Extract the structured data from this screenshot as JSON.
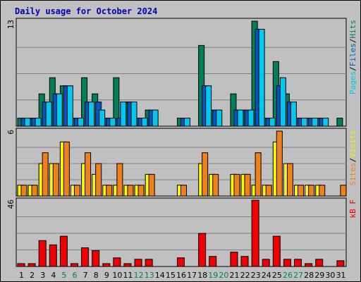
{
  "chart_data": {
    "type": "bar",
    "title": "Daily usage for October 2024",
    "days": [
      "1",
      "2",
      "3",
      "4",
      "5",
      "6",
      "7",
      "8",
      "9",
      "10",
      "11",
      "12",
      "13",
      "14",
      "15",
      "16",
      "17",
      "18",
      "19",
      "20",
      "21",
      "22",
      "23",
      "24",
      "25",
      "26",
      "27",
      "28",
      "29",
      "30",
      "31"
    ],
    "weekend_days": [
      "5",
      "6",
      "12",
      "13",
      "19",
      "20",
      "26",
      "27"
    ],
    "panels": [
      {
        "id": "top",
        "ymax_label": "13",
        "ymax": 13,
        "legend": [
          {
            "text": "Pages",
            "color": "#00c8e8"
          },
          {
            "text": "/",
            "color": "#000000"
          },
          {
            "text": "Files",
            "color": "#0060c0"
          },
          {
            "text": "/",
            "color": "#000000"
          },
          {
            "text": "Hits",
            "color": "#008060"
          }
        ],
        "series": [
          {
            "name": "Hits",
            "color": "#00805a",
            "values": [
              1,
              1,
              4,
              6,
              5,
              1,
              6,
              4,
              1,
              6,
              3,
              1,
              2,
              0,
              0,
              1,
              0,
              10,
              2,
              0,
              4,
              2,
              13,
              1,
              8,
              4,
              1,
              1,
              1,
              0,
              1
            ]
          },
          {
            "name": "Files",
            "color": "#0058c8",
            "values": [
              1,
              1,
              3,
              4,
              5,
              1,
              3,
              3,
              1,
              1,
              3,
              1,
              2,
              0,
              0,
              1,
              0,
              5,
              2,
              0,
              2,
              2,
              12,
              1,
              5,
              3,
              1,
              1,
              1,
              0,
              0
            ]
          },
          {
            "name": "Pages",
            "color": "#00c8f0",
            "values": [
              1,
              1,
              3,
              4,
              5,
              1,
              3,
              2,
              1,
              3,
              3,
              1,
              2,
              0,
              0,
              1,
              0,
              5,
              2,
              0,
              2,
              2,
              12,
              1,
              6,
              3,
              1,
              1,
              1,
              0,
              0
            ]
          }
        ]
      },
      {
        "id": "middle",
        "ymax_label": "6",
        "ymax": 6,
        "legend": [
          {
            "text": "Sites",
            "color": "#f08020"
          },
          {
            "text": "/",
            "color": "#000000"
          },
          {
            "text": "Visits",
            "color": "#f0f000"
          }
        ],
        "series": [
          {
            "name": "Visits",
            "color": "#f8f800",
            "values": [
              1,
              1,
              3,
              3,
              5,
              1,
              3,
              2,
              1,
              1,
              1,
              1,
              2,
              0,
              0,
              1,
              0,
              3,
              2,
              0,
              2,
              2,
              1,
              1,
              5,
              3,
              1,
              1,
              1,
              0,
              0
            ]
          },
          {
            "name": "Sites",
            "color": "#f08018",
            "values": [
              1,
              1,
              4,
              3,
              5,
              1,
              4,
              3,
              1,
              3,
              1,
              1,
              2,
              0,
              0,
              1,
              0,
              4,
              2,
              0,
              2,
              2,
              4,
              1,
              6,
              3,
              1,
              1,
              1,
              0,
              1
            ]
          }
        ]
      },
      {
        "id": "bottom",
        "ymax_label": "46",
        "ymax": 46,
        "legend": [
          {
            "text": "kB F",
            "color": "#f00000"
          }
        ],
        "series": [
          {
            "name": "kB F",
            "color": "#f00000",
            "values": [
              2,
              2,
              18,
              15,
              21,
              2,
              13,
              11,
              2,
              6,
              2,
              5,
              5,
              0,
              0,
              6,
              0,
              23,
              7,
              0,
              10,
              7,
              46,
              5,
              21,
              5,
              5,
              2,
              5,
              0,
              4
            ]
          }
        ]
      }
    ]
  }
}
